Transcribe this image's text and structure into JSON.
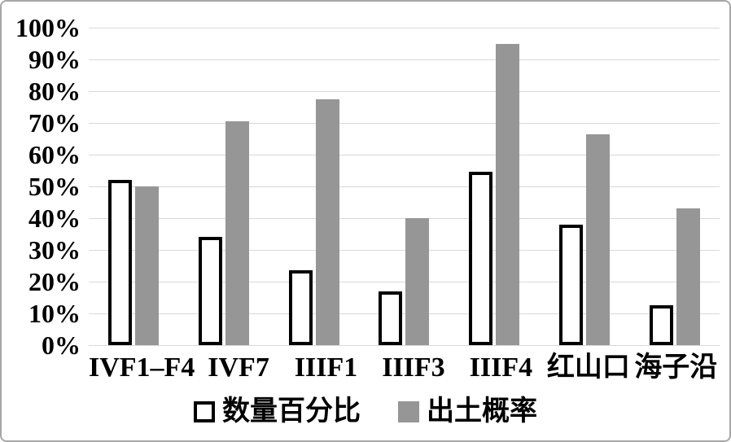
{
  "chart_data": {
    "type": "bar",
    "title": "",
    "xlabel": "",
    "ylabel": "",
    "categories": [
      "IVF1–F4",
      "IVF7",
      "IIIF1",
      "IIIF3",
      "IIIF4",
      "红山口",
      "海子沿"
    ],
    "series": [
      {
        "key": "quantity-percentage",
        "name": "数量百分比",
        "values": [
          52,
          34,
          23.5,
          17,
          54.5,
          38,
          12.5
        ],
        "fill": "#ffffff",
        "border": "#000000"
      },
      {
        "key": "unearthed-probability",
        "name": "出土概率",
        "values": [
          50,
          70.5,
          77.5,
          40,
          95,
          66.5,
          43
        ],
        "fill": "#969696",
        "border": null
      }
    ],
    "ylim": [
      0,
      100
    ],
    "ytick_step": 10,
    "ytick_labels": [
      "0%",
      "10%",
      "20%",
      "30%",
      "40%",
      "50%",
      "60%",
      "70%",
      "80%",
      "90%",
      "100%"
    ],
    "grid": true,
    "legend_position": "bottom"
  },
  "colors": {
    "gray_bar": "#969696",
    "gridline": "#d9d9d9",
    "text": "#000000",
    "frame_border": "#a6a6a6",
    "background": "#ffffff"
  }
}
